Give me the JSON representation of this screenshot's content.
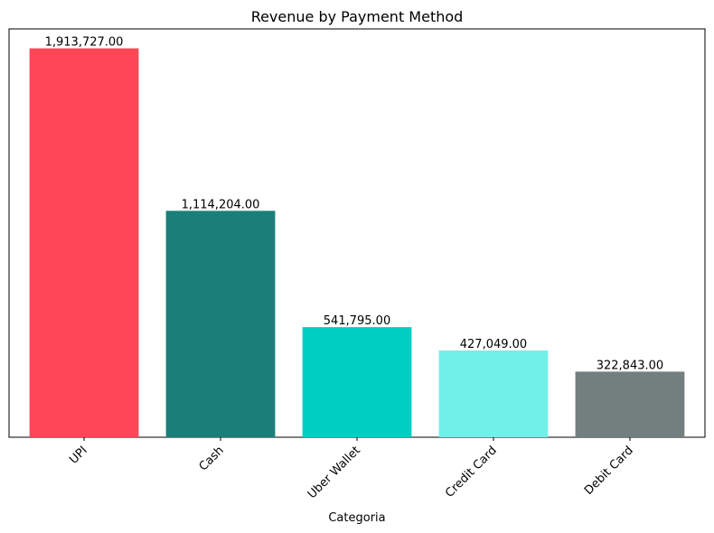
{
  "chart_data": {
    "type": "bar",
    "title": "Revenue by Payment Method",
    "xlabel": "Categoria",
    "ylabel": "",
    "categories": [
      "UPI",
      "Cash",
      "Uber Wallet",
      "Credit Card",
      "Debit Card"
    ],
    "values": [
      1913727,
      1114204,
      541795,
      427049,
      322843
    ],
    "data_labels": [
      "1,913,727.00",
      "1,114,204.00",
      "541,795.00",
      "427,049.00",
      "322,843.00"
    ],
    "colors": [
      "#ff4757",
      "#1b7f79",
      "#00cec3",
      "#70f0e8",
      "#737f7e"
    ],
    "ylim": [
      0,
      2009413
    ],
    "yaxis_visible": false,
    "grid": false,
    "legend": "none"
  }
}
